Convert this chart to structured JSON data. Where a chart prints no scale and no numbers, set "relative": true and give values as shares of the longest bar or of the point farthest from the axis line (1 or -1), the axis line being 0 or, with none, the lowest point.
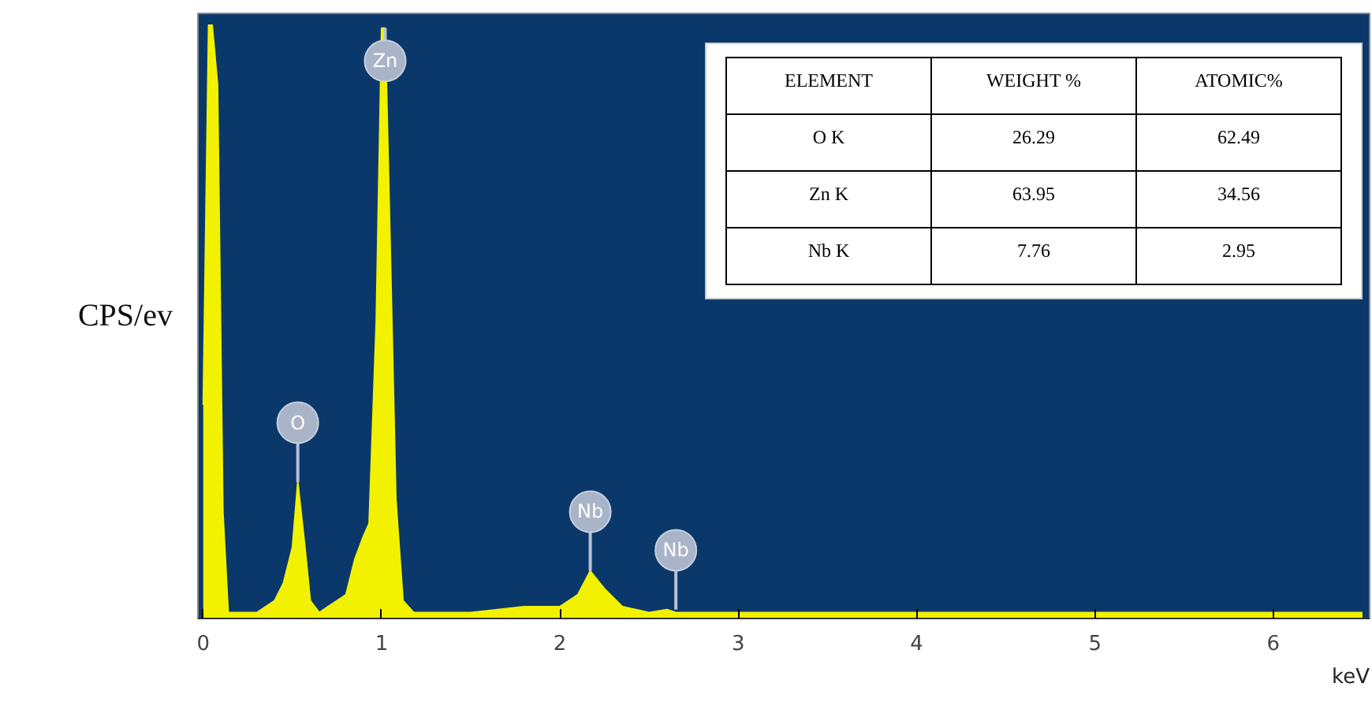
{
  "chart_data": {
    "type": "area",
    "relative": true,
    "color": "#f2f200",
    "xlabel": "keV",
    "ylabel": "CPS/ev",
    "x": [
      0,
      0.03,
      0.05,
      0.08,
      0.11,
      0.14,
      0.2,
      0.3,
      0.4,
      0.45,
      0.5,
      0.53,
      0.57,
      0.6,
      0.65,
      0.7,
      0.8,
      0.85,
      0.9,
      0.93,
      0.97,
      1.0,
      1.02,
      1.05,
      1.08,
      1.12,
      1.18,
      1.3,
      1.5,
      1.8,
      2.0,
      2.1,
      2.17,
      2.25,
      2.35,
      2.5,
      2.6,
      2.65,
      2.7,
      3.0,
      3.3,
      3.7,
      4.0,
      4.5,
      5.0,
      5.5,
      6.0,
      6.5
    ],
    "values": [
      0.36,
      1,
      1,
      0.9,
      0.18,
      0.01,
      0.01,
      0.01,
      0.03,
      0.06,
      0.12,
      0.23,
      0.12,
      0.03,
      0.01,
      0.02,
      0.04,
      0.1,
      0.14,
      0.16,
      0.5,
      0.995,
      0.995,
      0.6,
      0.2,
      0.03,
      0.01,
      0.01,
      0.01,
      0.02,
      0.02,
      0.04,
      0.08,
      0.05,
      0.02,
      0.01,
      0.015,
      0.01,
      0.01,
      0.01,
      0.01,
      0.01,
      0.01,
      0.01,
      0.01,
      0.01,
      0.01,
      0.01
    ],
    "xlim": [
      -0.03,
      6.54
    ],
    "xticks": [
      0,
      1,
      2,
      3,
      4,
      5,
      6
    ],
    "annotations": [
      {
        "text": "O",
        "x": 0.53,
        "y": 0.23
      },
      {
        "text": "Zn",
        "x": 1.02,
        "y": 0.995
      },
      {
        "text": "Nb",
        "x": 2.17,
        "y": 0.08
      },
      {
        "text": "Nb",
        "x": 2.65,
        "y": 0.015
      },
      "ELEMENT",
      "WEIGHT %",
      "ATOMIC%",
      "O K",
      "26.29",
      "62.49",
      "Zn K",
      "63.95",
      "34.56",
      "Nb K",
      "7.76",
      "2.95"
    ]
  }
}
